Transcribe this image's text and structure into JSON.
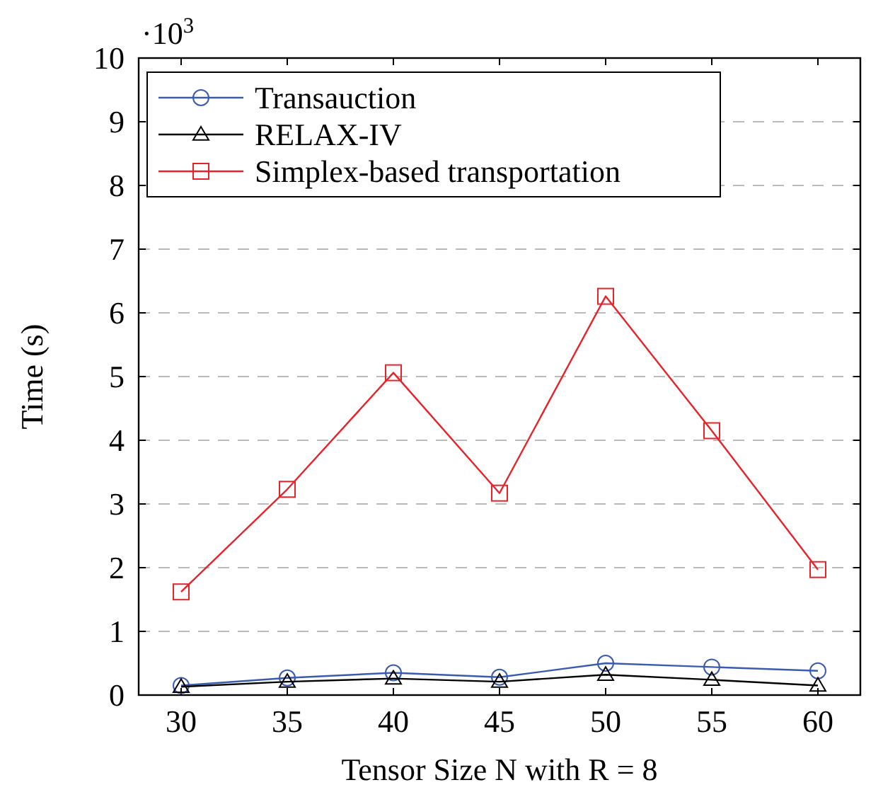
{
  "chart_data": {
    "type": "line",
    "xlabel": "Tensor Size N with R = 8",
    "ylabel": "Time (s)",
    "x": [
      30,
      35,
      40,
      45,
      50,
      55,
      60
    ],
    "series": [
      {
        "name": "Transauction",
        "color": "#3b5bb0",
        "marker": "circle",
        "values": [
          0.15,
          0.27,
          0.35,
          0.28,
          0.5,
          0.44,
          0.38
        ]
      },
      {
        "name": "RELAX-IV",
        "color": "#000000",
        "marker": "triangle",
        "values": [
          0.13,
          0.21,
          0.26,
          0.21,
          0.32,
          0.24,
          0.15
        ]
      },
      {
        "name": "Simplex-based transportation",
        "color": "#e8232a",
        "marker": "square",
        "values": [
          1.62,
          3.23,
          5.06,
          3.17,
          6.26,
          4.15,
          1.97
        ]
      }
    ],
    "xlim": [
      28,
      62
    ],
    "xticks": [
      30,
      35,
      40,
      45,
      50,
      55,
      60
    ],
    "ylim": [
      0,
      10
    ],
    "yticks": [
      0,
      1,
      2,
      3,
      4,
      5,
      6,
      7,
      8,
      9,
      10
    ],
    "annotations": [
      "·10$^{3}$"
    ],
    "grid": "y",
    "legend": "top left"
  }
}
